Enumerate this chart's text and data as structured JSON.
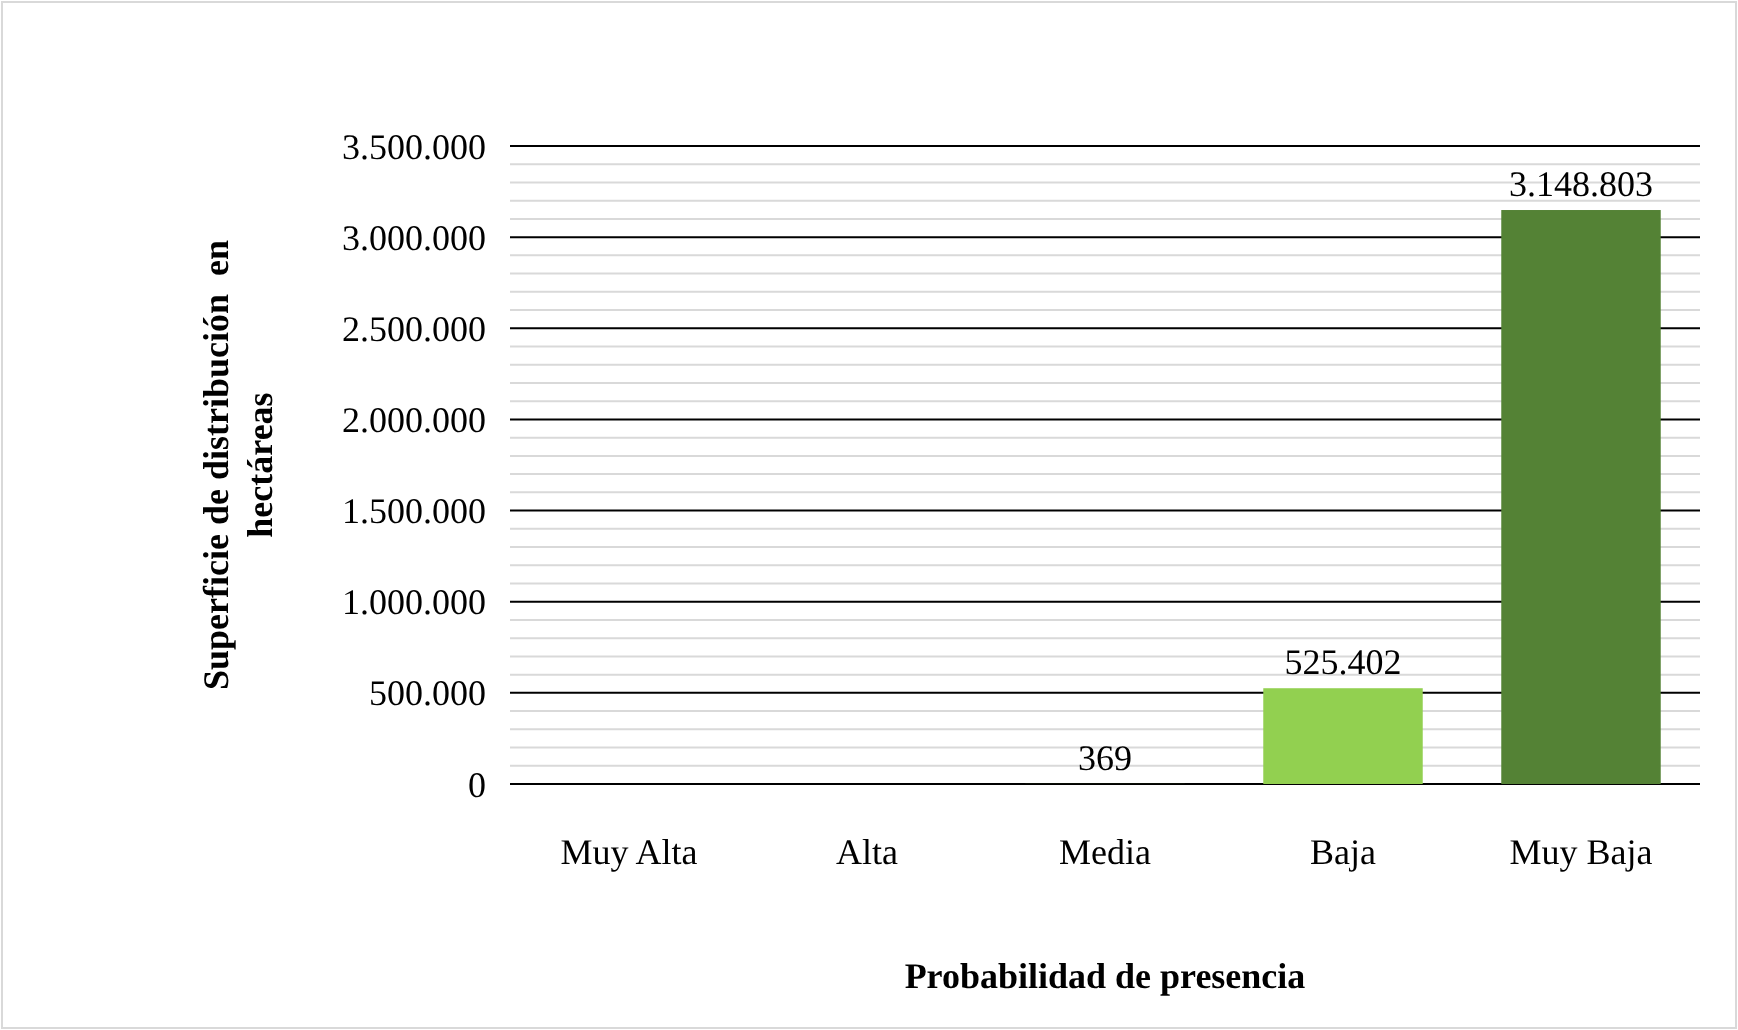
{
  "chart_data": {
    "type": "bar",
    "xlabel": "Probabilidad de presencia",
    "ylabel": "Superficie de distribución  en hectáreas",
    "categories": [
      "Muy Alta",
      "Alta",
      "Media",
      "Baja",
      "Muy Baja"
    ],
    "values": [
      0,
      0,
      369,
      525402,
      3148803
    ],
    "value_labels": [
      null,
      null,
      "369",
      "525.402",
      "3.148.803"
    ],
    "colors": [
      "#92d050",
      "#92d050",
      "#92d050",
      "#92d050",
      "#548235"
    ],
    "ylim": [
      0,
      3500000
    ],
    "yticks": [
      {
        "value": 0,
        "label": "0"
      },
      {
        "value": 100000,
        "label": null
      },
      {
        "value": 200000,
        "label": null
      },
      {
        "value": 300000,
        "label": null
      },
      {
        "value": 400000,
        "label": null
      },
      {
        "value": 500000,
        "label": "500.000"
      },
      {
        "value": 600000,
        "label": null
      },
      {
        "value": 700000,
        "label": null
      },
      {
        "value": 800000,
        "label": null
      },
      {
        "value": 900000,
        "label": null
      },
      {
        "value": 1000000,
        "label": "1.000.000"
      },
      {
        "value": 1100000,
        "label": null
      },
      {
        "value": 1200000,
        "label": null
      },
      {
        "value": 1300000,
        "label": null
      },
      {
        "value": 1400000,
        "label": null
      },
      {
        "value": 1500000,
        "label": "1.500.000"
      },
      {
        "value": 1600000,
        "label": null
      },
      {
        "value": 1700000,
        "label": null
      },
      {
        "value": 1800000,
        "label": null
      },
      {
        "value": 1900000,
        "label": null
      },
      {
        "value": 2000000,
        "label": "2.000.000"
      },
      {
        "value": 2100000,
        "label": null
      },
      {
        "value": 2200000,
        "label": null
      },
      {
        "value": 2300000,
        "label": null
      },
      {
        "value": 2400000,
        "label": null
      },
      {
        "value": 2500000,
        "label": "2.500.000"
      },
      {
        "value": 2600000,
        "label": null
      },
      {
        "value": 2700000,
        "label": null
      },
      {
        "value": 2800000,
        "label": null
      },
      {
        "value": 2900000,
        "label": null
      },
      {
        "value": 3000000,
        "label": "3.000.000"
      },
      {
        "value": 3100000,
        "label": null
      },
      {
        "value": 3200000,
        "label": null
      },
      {
        "value": 3300000,
        "label": null
      },
      {
        "value": 3400000,
        "label": null
      },
      {
        "value": 3500000,
        "label": "3.500.000"
      }
    ],
    "grid": true
  }
}
